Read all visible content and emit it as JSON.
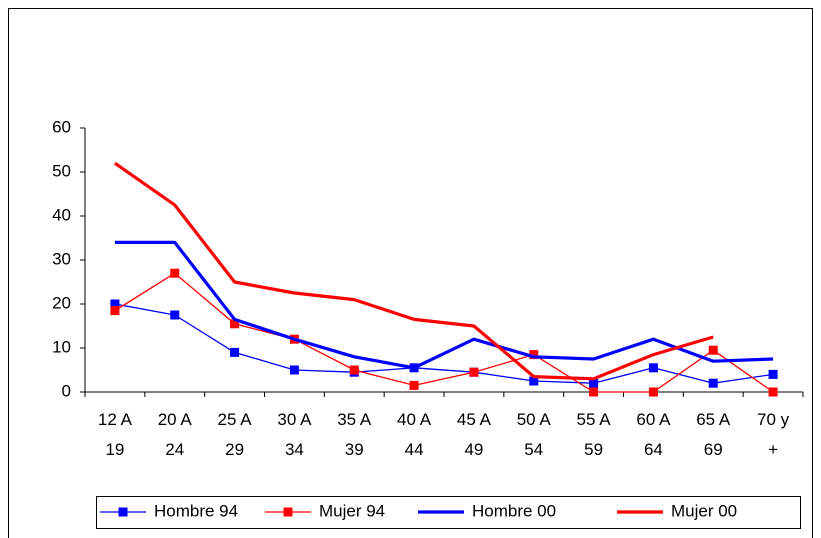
{
  "chart_data": {
    "type": "line",
    "categories": [
      "12 A 19",
      "20 A 24",
      "25 A 29",
      "30 A 34",
      "35 A 39",
      "40 A 44",
      "45 A 49",
      "50 A 54",
      "55 A 59",
      "60 A 64",
      "65 A 69",
      "70 y +"
    ],
    "series": [
      {
        "name": "Hombre 94",
        "color": "#0000ff",
        "marker": true,
        "values": [
          20,
          17.5,
          9,
          5,
          4.5,
          5.5,
          4.5,
          2.5,
          2,
          5.5,
          2,
          4
        ]
      },
      {
        "name": "Mujer 94",
        "color": "#ff0000",
        "marker": true,
        "values": [
          18.5,
          27,
          15.5,
          12,
          5,
          1.5,
          4.5,
          8.5,
          0,
          0,
          9.5,
          0
        ]
      },
      {
        "name": "Hombre 00",
        "color": "#0000ff",
        "marker": false,
        "values": [
          34,
          34,
          16.5,
          12,
          8,
          5.5,
          12,
          8,
          7.5,
          12,
          7,
          7.5
        ]
      },
      {
        "name": "Mujer 00",
        "color": "#ff0000",
        "marker": false,
        "values": [
          52,
          42.5,
          25,
          22.5,
          21,
          16.5,
          15,
          3.5,
          3,
          8.5,
          12.5,
          null
        ]
      }
    ],
    "ylim": [
      0,
      60
    ],
    "yticks": [
      0,
      10,
      20,
      30,
      40,
      50,
      60
    ],
    "grid": false,
    "legend": "bottom"
  }
}
